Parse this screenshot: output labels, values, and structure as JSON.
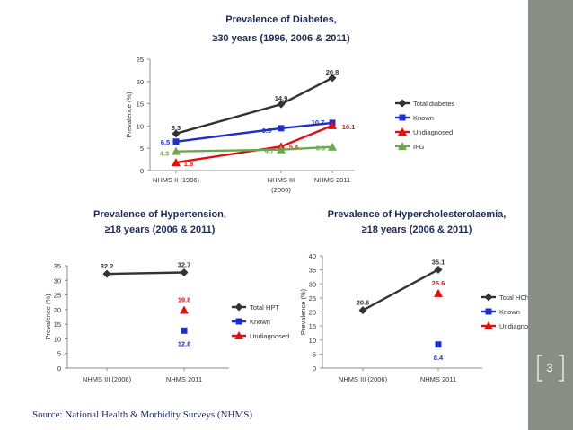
{
  "source": "Source: National Health & Morbidity Surveys (NHMS)",
  "page_number": "3",
  "colors": {
    "sidebar": "#8a8f85",
    "total": "#333333",
    "known": "#1f2fcc",
    "undiagnosed": "#e01010",
    "ifg": "#6aa84f"
  },
  "chart_data": [
    {
      "type": "line",
      "id": "diabetes",
      "title": [
        "Prevalence of Diabetes,",
        "≥30 years (1996, 2006 & 2011)"
      ],
      "ylabel": "Prevalence (%)",
      "ylim": [
        0,
        25
      ],
      "yticks": [
        "0",
        "5",
        "10",
        "15",
        "20",
        "25"
      ],
      "categories": [
        "NHMS II (1996)",
        "NHMS III (2006)",
        "NHMS 2011"
      ],
      "series": [
        {
          "name": "Total diabetes",
          "color": "#333333",
          "marker": "diamond",
          "values": [
            8.3,
            14.9,
            20.8
          ],
          "labels": [
            "8.3",
            "14.9",
            "20.8"
          ]
        },
        {
          "name": "Known",
          "color": "#1f2fcc",
          "marker": "square",
          "values": [
            6.5,
            9.5,
            10.7
          ],
          "labels": [
            "6.5",
            "9.5",
            "10.7"
          ]
        },
        {
          "name": "Undiagnosed",
          "color": "#e01010",
          "marker": "triangle",
          "values": [
            1.8,
            5.4,
            10.1
          ],
          "labels": [
            "1.8",
            "5.4",
            "10.1"
          ]
        },
        {
          "name": "IFG",
          "color": "#6aa84f",
          "marker": "triangle",
          "values": [
            4.3,
            4.7,
            5.3
          ],
          "labels": [
            "4.3",
            "4.7",
            "5.3"
          ]
        }
      ]
    },
    {
      "type": "line",
      "id": "hypertension",
      "title": [
        "Prevalence of Hypertension,",
        "≥18 years (2006 & 2011)"
      ],
      "ylabel": "Prevalence (%)",
      "ylim": [
        0,
        35
      ],
      "yticks": [
        "0",
        "5",
        "10",
        "15",
        "20",
        "25",
        "30",
        "35"
      ],
      "categories": [
        "NHMS III (2006)",
        "NHMS 2011"
      ],
      "series": [
        {
          "name": "Total HPT",
          "color": "#333333",
          "marker": "diamond",
          "values": [
            32.2,
            32.7
          ],
          "labels": [
            "32.2",
            "32.7"
          ]
        },
        {
          "name": "Known",
          "color": "#1f2fcc",
          "marker": "square",
          "values": [
            null,
            12.8
          ],
          "labels": [
            "",
            "12.8"
          ]
        },
        {
          "name": "Undiagnosed",
          "color": "#e01010",
          "marker": "triangle",
          "values": [
            null,
            19.8
          ],
          "labels": [
            "",
            "19.8"
          ]
        }
      ]
    },
    {
      "type": "line",
      "id": "hypercholesterolaemia",
      "title": [
        "Prevalence of Hypercholesterolaemia,",
        "≥18 years (2006 & 2011)"
      ],
      "ylabel": "Prevalence (%)",
      "ylim": [
        0,
        40
      ],
      "yticks": [
        "0",
        "5",
        "10",
        "15",
        "20",
        "25",
        "30",
        "35",
        "40"
      ],
      "categories": [
        "NHMS III (2006)",
        "NHMS 2011"
      ],
      "series": [
        {
          "name": "Total HChol",
          "color": "#333333",
          "marker": "diamond",
          "values": [
            20.6,
            35.1
          ],
          "labels": [
            "20.6",
            "35.1"
          ]
        },
        {
          "name": "Known",
          "color": "#1f2fcc",
          "marker": "square",
          "values": [
            null,
            8.4
          ],
          "labels": [
            "",
            "8.4"
          ]
        },
        {
          "name": "Undiagnosed",
          "color": "#e01010",
          "marker": "triangle",
          "values": [
            null,
            26.6
          ],
          "labels": [
            "",
            "26.6"
          ]
        }
      ]
    }
  ]
}
